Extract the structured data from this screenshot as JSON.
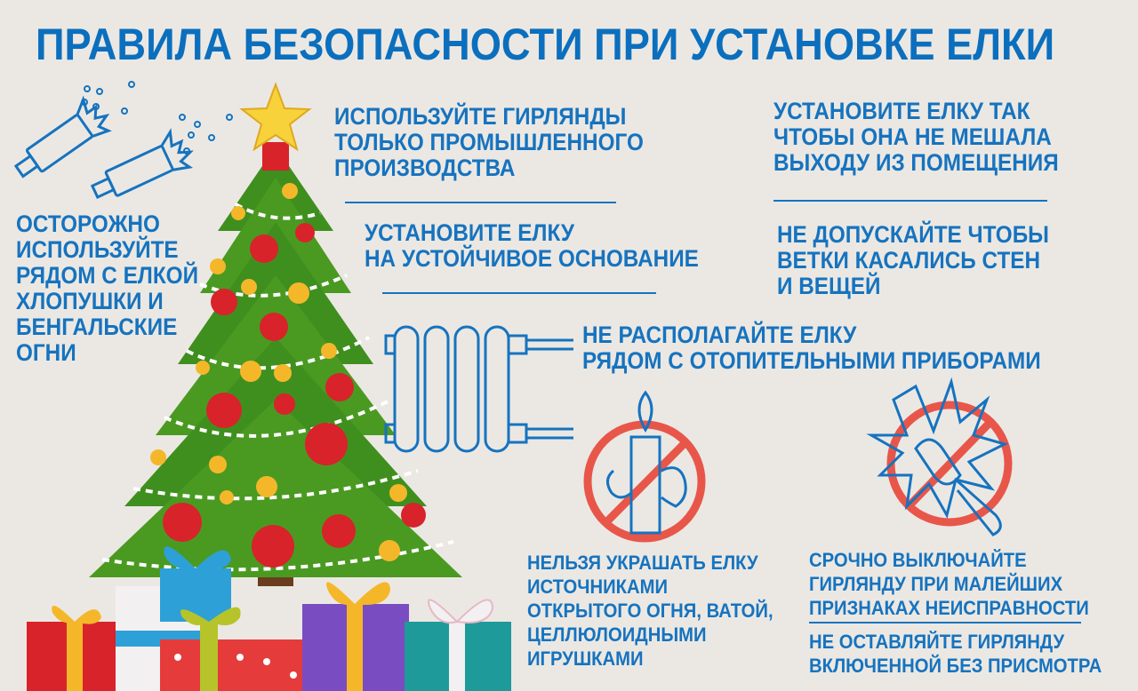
{
  "title": "ПРАВИЛА БЕЗОПАСНОСТИ ПРИ УСТАНОВКЕ ЕЛКИ",
  "colors": {
    "background": "#ebe8e3",
    "text": "#1673bf",
    "prohibition": "#e8564a"
  },
  "rules": {
    "garlands": [
      "ИСПОЛЬЗУЙТЕ ГИРЛЯНДЫ",
      "ТОЛЬКО ПРОМЫШЛЕННОГО",
      "ПРОИЗВОДСТВА"
    ],
    "stable_base": [
      "УСТАНОВИТЕ ЕЛКУ",
      "НА УСТОЙЧИВОЕ ОСНОВАНИЕ"
    ],
    "exit": [
      "УСТАНОВИТЕ ЕЛКУ ТАК",
      "ЧТОБЫ ОНА НЕ МЕШАЛА",
      "ВЫХОДУ ИЗ ПОМЕЩЕНИЯ"
    ],
    "walls": [
      "НЕ ДОПУСКАЙТЕ ЧТОБЫ",
      "ВЕТКИ КАСАЛИСЬ СТЕН",
      "И ВЕЩЕЙ"
    ],
    "firecrackers": [
      "ОСТОРОЖНО",
      "ИСПОЛЬЗУЙТЕ",
      "РЯДОМ С ЕЛКОЙ",
      "ХЛОПУШКИ И",
      "БЕНГАЛЬСКИЕ",
      "ОГНИ"
    ],
    "heaters": [
      "НЕ РАСПОЛАГАЙТЕ ЕЛКУ",
      "РЯДОМ С ОТОПИТЕЛЬНЫМИ ПРИБОРАМИ"
    ],
    "open_fire": [
      "НЕЛЬЗЯ УКРАШАТЬ ЕЛКУ",
      "ИСТОЧНИКАМИ",
      "ОТКРЫТОГО ОГНЯ, ВАТОЙ,",
      "ЦЕЛЛЮЛОИДНЫМИ",
      "ИГРУШКАМИ"
    ],
    "malfunction": [
      "СРОЧНО ВЫКЛЮЧАЙТЕ",
      "ГИРЛЯНДУ ПРИ МАЛЕЙШИХ",
      "ПРИЗНАКАХ НЕИСПРАВНОСТИ"
    ],
    "unattended": [
      "НЕ ОСТАВЛЯЙТЕ ГИРЛЯНДУ",
      "ВКЛЮЧЕННОЙ БЕЗ ПРИСМОТРА"
    ]
  },
  "icons": [
    "firecracker-icon",
    "christmas-tree-illustration",
    "gift-boxes-illustration",
    "radiator-icon",
    "no-candle-icon",
    "no-broken-bulb-icon"
  ]
}
